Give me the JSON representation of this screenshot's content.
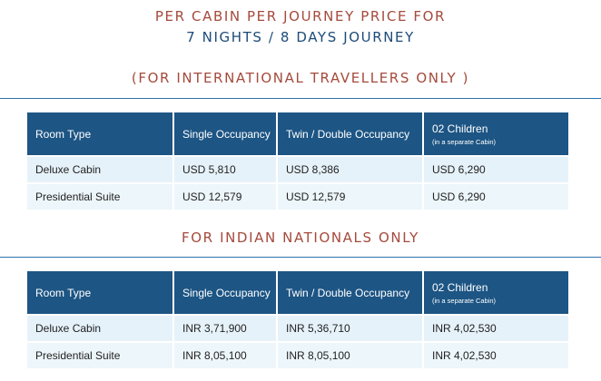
{
  "title": {
    "line1": "PER CABIN PER JOURNEY PRICE FOR",
    "line2": "7 NIGHTS / 8 DAYS JOURNEY"
  },
  "sections": [
    {
      "heading": "(FOR INTERNATIONAL TRAVELLERS ONLY )",
      "headers": [
        "Room Type",
        "Single Occupancy",
        "Twin / Double Occupancy",
        "02 Children"
      ],
      "children_note": "(in a separate Cabin)",
      "rows": [
        [
          "Deluxe Cabin",
          "USD 5,810",
          "USD 8,386",
          "USD 6,290"
        ],
        [
          "Presidential Suite",
          "USD 12,579",
          "USD 12,579",
          "USD 6,290"
        ]
      ]
    },
    {
      "heading": "FOR INDIAN NATIONALS ONLY",
      "headers": [
        "Room Type",
        "Single Occupancy",
        "Twin / Double Occupancy",
        "02 Children"
      ],
      "children_note": "(in a separate Cabin)",
      "rows": [
        [
          "Deluxe Cabin",
          "INR 3,71,900",
          "INR 5,36,710",
          "INR 4,02,530"
        ],
        [
          "Presidential Suite",
          "INR 8,05,100",
          "INR 8,05,100",
          "INR 4,02,530"
        ]
      ]
    }
  ],
  "colors": {
    "heading_red": "#a54a3c",
    "heading_blue": "#1d4b78",
    "table_header": "#1d5584",
    "row_bg": "#e6f2fa"
  }
}
